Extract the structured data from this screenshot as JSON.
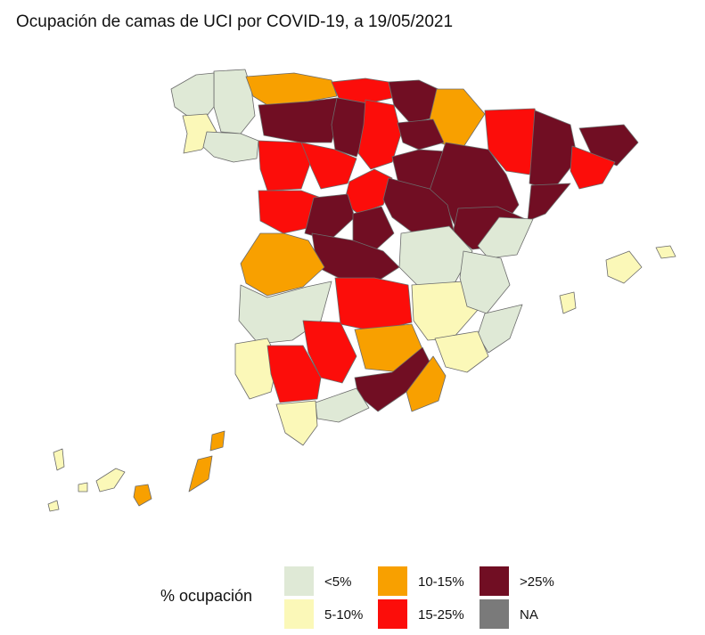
{
  "title": "Ocupación de camas de UCI por COVID-19, a 19/05/2021",
  "legend": {
    "title": "% ocupación",
    "items": [
      {
        "label": "<5%",
        "color": "#dfe9d6"
      },
      {
        "label": "5-10%",
        "color": "#fbf8b8"
      },
      {
        "label": "10-15%",
        "color": "#f8a000"
      },
      {
        "label": "15-25%",
        "color": "#fc0d0a"
      },
      {
        "label": ">25%",
        "color": "#710e23"
      },
      {
        "label": "NA",
        "color": "#7a7a7a"
      }
    ]
  }
}
